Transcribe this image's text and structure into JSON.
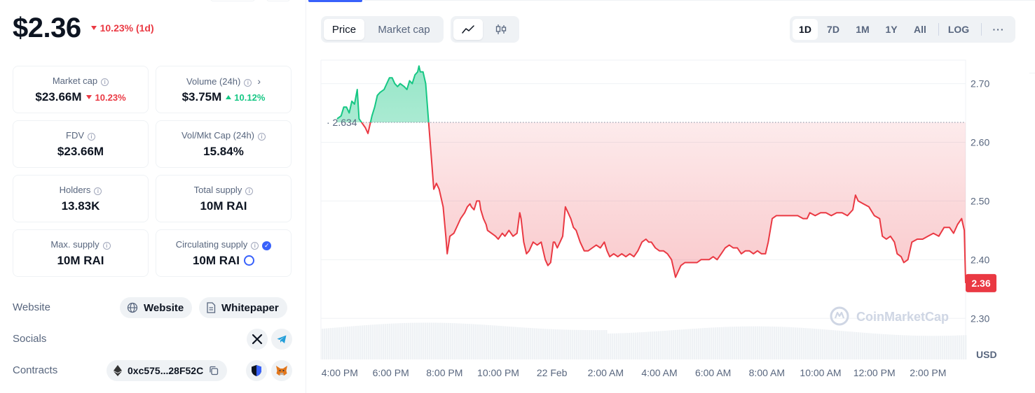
{
  "token": {
    "price": "$2.36",
    "change": "10.23% (1d)",
    "change_direction": "down"
  },
  "stats": [
    {
      "id": "market-cap",
      "label": "Market cap",
      "value": "$23.66M",
      "change": "10.23%",
      "change_dir": "down",
      "has_info": true
    },
    {
      "id": "volume",
      "label": "Volume (24h)",
      "value": "$3.75M",
      "change": "10.12%",
      "change_dir": "up",
      "has_info": true,
      "has_chevron": true
    },
    {
      "id": "fdv",
      "label": "FDV",
      "value": "$23.66M",
      "has_info": true
    },
    {
      "id": "vol-mkt-cap",
      "label": "Vol/Mkt Cap (24h)",
      "value": "15.84%",
      "has_info": true
    },
    {
      "id": "holders",
      "label": "Holders",
      "value": "13.83K",
      "has_info": true
    },
    {
      "id": "total-supply",
      "label": "Total supply",
      "value": "10M RAI",
      "has_info": true
    },
    {
      "id": "max-supply",
      "label": "Max. supply",
      "value": "10M RAI",
      "has_info": true
    },
    {
      "id": "circulating-supply",
      "label": "Circulating supply",
      "value": "10M RAI",
      "has_info": true,
      "verified": true
    }
  ],
  "links": {
    "website_label": "Website",
    "website_btn": "Website",
    "whitepaper_btn": "Whitepaper",
    "socials_label": "Socials",
    "socials": [
      "x-icon",
      "telegram-icon"
    ],
    "contracts_label": "Contracts",
    "contract_address": "0xc575...28F52C"
  },
  "toolbar": {
    "view_tabs": [
      "Price",
      "Market cap"
    ],
    "active_view": "Price",
    "chart_types": [
      "line-chart-icon",
      "candlestick-icon"
    ],
    "active_chart_type": "line-chart-icon",
    "ranges": [
      "1D",
      "7D",
      "1M",
      "1Y",
      "All"
    ],
    "active_range": "1D",
    "log_label": "LOG",
    "more_icon": "more-horizontal-icon"
  },
  "colors": {
    "up": "#16c784",
    "down": "#ea3943",
    "accent": "#3861fb",
    "muted": "#58667e"
  },
  "chart_data": {
    "type": "line",
    "currency_label": "USD",
    "watermark": "CoinMarketCap",
    "reference_price": 2.634,
    "reference_label": "2.634",
    "current_price": 2.36,
    "current_label": "2.36",
    "ylim": [
      2.23,
      2.74
    ],
    "y_ticks": [
      2.3,
      2.4,
      2.5,
      2.6,
      2.7
    ],
    "y_tick_labels": [
      "2.30",
      "2.40",
      "2.50",
      "2.60",
      "2.70"
    ],
    "x_ticks": [
      "4:00 PM",
      "6:00 PM",
      "8:00 PM",
      "10:00 PM",
      "22 Feb",
      "2:00 AM",
      "4:00 AM",
      "6:00 AM",
      "8:00 AM",
      "10:00 AM",
      "12:00 PM",
      "2:00 PM"
    ],
    "x_tick_hours": [
      0.1,
      2.0,
      4.0,
      6.0,
      8.0,
      10.0,
      12.0,
      14.0,
      16.0,
      18.0,
      20.0,
      22.0
    ],
    "x_range_hours": [
      -0.6,
      23.4
    ],
    "series": [
      {
        "values": [
          [
            0.0,
            2.64
          ],
          [
            0.15,
            2.645
          ],
          [
            0.25,
            2.66
          ],
          [
            0.35,
            2.66
          ],
          [
            0.45,
            2.65
          ],
          [
            0.55,
            2.67
          ],
          [
            0.65,
            2.665
          ],
          [
            0.75,
            2.69
          ],
          [
            0.82,
            2.64
          ],
          [
            1.05,
            2.625
          ],
          [
            1.15,
            2.615
          ],
          [
            1.3,
            2.645
          ],
          [
            1.4,
            2.66
          ],
          [
            1.5,
            2.68
          ],
          [
            1.6,
            2.685
          ],
          [
            1.75,
            2.69
          ],
          [
            1.85,
            2.7
          ],
          [
            1.95,
            2.71
          ],
          [
            2.05,
            2.71
          ],
          [
            2.15,
            2.7
          ],
          [
            2.25,
            2.695
          ],
          [
            2.35,
            2.7
          ],
          [
            2.5,
            2.695
          ],
          [
            2.6,
            2.69
          ],
          [
            2.7,
            2.705
          ],
          [
            2.8,
            2.7
          ],
          [
            2.9,
            2.715
          ],
          [
            3.0,
            2.72
          ],
          [
            3.05,
            2.73
          ],
          [
            3.1,
            2.72
          ],
          [
            3.2,
            2.72
          ],
          [
            3.3,
            2.7
          ],
          [
            3.4,
            2.64
          ],
          [
            3.5,
            2.58
          ],
          [
            3.6,
            2.52
          ],
          [
            3.7,
            2.53
          ],
          [
            3.8,
            2.52
          ],
          [
            3.95,
            2.49
          ],
          [
            4.05,
            2.44
          ],
          [
            4.1,
            2.41
          ],
          [
            4.2,
            2.44
          ],
          [
            4.35,
            2.445
          ],
          [
            4.5,
            2.46
          ],
          [
            4.6,
            2.47
          ],
          [
            4.75,
            2.48
          ],
          [
            4.85,
            2.49
          ],
          [
            4.95,
            2.495
          ],
          [
            5.0,
            2.49
          ],
          [
            5.1,
            2.485
          ],
          [
            5.2,
            2.5
          ],
          [
            5.3,
            2.5
          ],
          [
            5.35,
            2.485
          ],
          [
            5.45,
            2.47
          ],
          [
            5.55,
            2.46
          ],
          [
            5.6,
            2.45
          ],
          [
            5.75,
            2.445
          ],
          [
            5.9,
            2.44
          ],
          [
            6.0,
            2.435
          ],
          [
            6.15,
            2.445
          ],
          [
            6.25,
            2.44
          ],
          [
            6.4,
            2.45
          ],
          [
            6.55,
            2.44
          ],
          [
            6.7,
            2.445
          ],
          [
            6.8,
            2.48
          ],
          [
            6.85,
            2.47
          ],
          [
            6.95,
            2.43
          ],
          [
            7.05,
            2.41
          ],
          [
            7.15,
            2.415
          ],
          [
            7.3,
            2.43
          ],
          [
            7.45,
            2.425
          ],
          [
            7.6,
            2.43
          ],
          [
            7.75,
            2.4
          ],
          [
            7.85,
            2.39
          ],
          [
            7.95,
            2.395
          ],
          [
            8.05,
            2.43
          ],
          [
            8.1,
            2.43
          ],
          [
            8.2,
            2.42
          ],
          [
            8.3,
            2.43
          ],
          [
            8.4,
            2.44
          ],
          [
            8.5,
            2.49
          ],
          [
            8.6,
            2.48
          ],
          [
            8.7,
            2.47
          ],
          [
            8.8,
            2.455
          ],
          [
            8.9,
            2.45
          ],
          [
            9.05,
            2.43
          ],
          [
            9.2,
            2.415
          ],
          [
            9.35,
            2.415
          ],
          [
            9.5,
            2.42
          ],
          [
            9.65,
            2.425
          ],
          [
            9.8,
            2.42
          ],
          [
            9.95,
            2.43
          ],
          [
            10.05,
            2.415
          ],
          [
            10.15,
            2.405
          ],
          [
            10.3,
            2.41
          ],
          [
            10.45,
            2.405
          ],
          [
            10.6,
            2.41
          ],
          [
            10.75,
            2.405
          ],
          [
            10.9,
            2.41
          ],
          [
            11.05,
            2.405
          ],
          [
            11.2,
            2.415
          ],
          [
            11.35,
            2.43
          ],
          [
            11.5,
            2.435
          ],
          [
            11.6,
            2.43
          ],
          [
            11.7,
            2.43
          ],
          [
            11.85,
            2.42
          ],
          [
            12.0,
            2.415
          ],
          [
            12.15,
            2.415
          ],
          [
            12.3,
            2.41
          ],
          [
            12.45,
            2.4
          ],
          [
            12.6,
            2.37
          ],
          [
            12.7,
            2.38
          ],
          [
            12.8,
            2.39
          ],
          [
            12.95,
            2.395
          ],
          [
            13.1,
            2.395
          ],
          [
            13.25,
            2.395
          ],
          [
            13.4,
            2.395
          ],
          [
            13.55,
            2.4
          ],
          [
            13.7,
            2.4
          ],
          [
            13.85,
            2.4
          ],
          [
            14.0,
            2.405
          ],
          [
            14.15,
            2.4
          ],
          [
            14.3,
            2.41
          ],
          [
            14.45,
            2.42
          ],
          [
            14.6,
            2.425
          ],
          [
            14.75,
            2.42
          ],
          [
            14.9,
            2.42
          ],
          [
            15.05,
            2.41
          ],
          [
            15.2,
            2.415
          ],
          [
            15.35,
            2.415
          ],
          [
            15.5,
            2.41
          ],
          [
            15.65,
            2.415
          ],
          [
            15.8,
            2.41
          ],
          [
            15.95,
            2.41
          ],
          [
            16.05,
            2.43
          ],
          [
            16.2,
            2.47
          ],
          [
            16.35,
            2.475
          ],
          [
            16.55,
            2.475
          ],
          [
            16.75,
            2.475
          ],
          [
            16.95,
            2.475
          ],
          [
            17.15,
            2.475
          ],
          [
            17.35,
            2.47
          ],
          [
            17.5,
            2.47
          ],
          [
            17.6,
            2.48
          ],
          [
            17.8,
            2.475
          ],
          [
            18.0,
            2.48
          ],
          [
            18.2,
            2.48
          ],
          [
            18.4,
            2.475
          ],
          [
            18.6,
            2.48
          ],
          [
            18.8,
            2.48
          ],
          [
            19.0,
            2.475
          ],
          [
            19.2,
            2.485
          ],
          [
            19.3,
            2.51
          ],
          [
            19.4,
            2.5
          ],
          [
            19.6,
            2.495
          ],
          [
            19.8,
            2.49
          ],
          [
            20.0,
            2.475
          ],
          [
            20.2,
            2.47
          ],
          [
            20.3,
            2.44
          ],
          [
            20.45,
            2.435
          ],
          [
            20.6,
            2.44
          ],
          [
            20.75,
            2.43
          ],
          [
            20.85,
            2.41
          ],
          [
            21.0,
            2.405
          ],
          [
            21.1,
            2.395
          ],
          [
            21.25,
            2.4
          ],
          [
            21.4,
            2.43
          ],
          [
            21.6,
            2.435
          ],
          [
            21.8,
            2.435
          ],
          [
            22.0,
            2.44
          ],
          [
            22.2,
            2.445
          ],
          [
            22.4,
            2.44
          ],
          [
            22.6,
            2.455
          ],
          [
            22.8,
            2.455
          ],
          [
            22.95,
            2.445
          ],
          [
            23.1,
            2.46
          ],
          [
            23.25,
            2.47
          ],
          [
            23.35,
            2.45
          ],
          [
            23.4,
            2.36
          ]
        ]
      }
    ]
  }
}
